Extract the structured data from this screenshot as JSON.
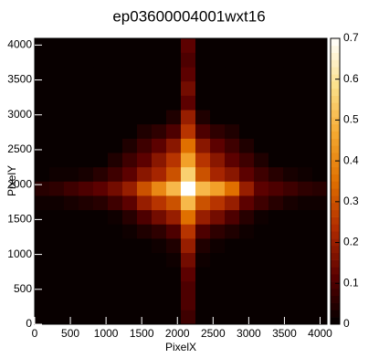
{
  "chart_data": {
    "type": "heatmap",
    "title": "ep03600004001wxt16",
    "x_label": "PixelX",
    "y_label": "PixelY",
    "xlim": [
      0,
      4096
    ],
    "ylim": [
      0,
      4096
    ],
    "xticks": [
      0,
      500,
      1000,
      1500,
      2000,
      2500,
      3000,
      3500,
      4000
    ],
    "yticks": [
      0,
      500,
      1000,
      1500,
      2000,
      2500,
      3000,
      3500,
      4000
    ],
    "zlim": [
      0,
      0.7
    ],
    "zticks": [
      0,
      0.1,
      0.2,
      0.3,
      0.4,
      0.5,
      0.6,
      0.7
    ],
    "colormap": [
      "#000000",
      "#5a0000",
      "#b02a00",
      "#e07000",
      "#f5a830",
      "#fbe08a",
      "#ffffff"
    ],
    "z": [
      [
        0.01,
        0.01,
        0.01,
        0.01,
        0.01,
        0.01,
        0.01,
        0.01,
        0.01,
        0.01,
        0.08,
        0.01,
        0.01,
        0.01,
        0.01,
        0.01,
        0.01,
        0.01,
        0.01,
        0.01
      ],
      [
        0.01,
        0.01,
        0.01,
        0.01,
        0.01,
        0.01,
        0.01,
        0.01,
        0.01,
        0.01,
        0.1,
        0.01,
        0.01,
        0.01,
        0.01,
        0.01,
        0.01,
        0.01,
        0.01,
        0.01
      ],
      [
        0.01,
        0.01,
        0.01,
        0.01,
        0.01,
        0.01,
        0.01,
        0.01,
        0.01,
        0.01,
        0.1,
        0.01,
        0.01,
        0.01,
        0.01,
        0.01,
        0.01,
        0.01,
        0.01,
        0.01
      ],
      [
        0.01,
        0.01,
        0.01,
        0.01,
        0.01,
        0.01,
        0.01,
        0.01,
        0.01,
        0.01,
        0.12,
        0.01,
        0.01,
        0.01,
        0.01,
        0.01,
        0.01,
        0.01,
        0.01,
        0.01
      ],
      [
        0.01,
        0.01,
        0.01,
        0.01,
        0.01,
        0.01,
        0.01,
        0.01,
        0.01,
        0.02,
        0.15,
        0.02,
        0.01,
        0.01,
        0.01,
        0.01,
        0.01,
        0.01,
        0.01,
        0.01
      ],
      [
        0.01,
        0.01,
        0.01,
        0.01,
        0.01,
        0.01,
        0.01,
        0.01,
        0.02,
        0.04,
        0.2,
        0.04,
        0.02,
        0.01,
        0.01,
        0.01,
        0.01,
        0.01,
        0.01,
        0.01
      ],
      [
        0.01,
        0.01,
        0.01,
        0.01,
        0.01,
        0.01,
        0.02,
        0.04,
        0.06,
        0.1,
        0.25,
        0.1,
        0.06,
        0.04,
        0.02,
        0.01,
        0.01,
        0.01,
        0.01,
        0.01
      ],
      [
        0.01,
        0.01,
        0.01,
        0.01,
        0.01,
        0.02,
        0.05,
        0.1,
        0.15,
        0.2,
        0.35,
        0.2,
        0.15,
        0.1,
        0.05,
        0.02,
        0.01,
        0.01,
        0.01,
        0.01
      ],
      [
        0.02,
        0.02,
        0.03,
        0.04,
        0.05,
        0.08,
        0.12,
        0.2,
        0.25,
        0.3,
        0.5,
        0.3,
        0.25,
        0.2,
        0.12,
        0.08,
        0.05,
        0.03,
        0.02,
        0.02
      ],
      [
        0.05,
        0.06,
        0.08,
        0.1,
        0.12,
        0.15,
        0.2,
        0.3,
        0.4,
        0.5,
        0.7,
        0.5,
        0.45,
        0.35,
        0.2,
        0.12,
        0.1,
        0.08,
        0.06,
        0.05
      ],
      [
        0.01,
        0.02,
        0.02,
        0.03,
        0.05,
        0.08,
        0.12,
        0.18,
        0.22,
        0.3,
        0.55,
        0.3,
        0.22,
        0.18,
        0.12,
        0.08,
        0.05,
        0.03,
        0.02,
        0.01
      ],
      [
        0.01,
        0.01,
        0.01,
        0.01,
        0.01,
        0.04,
        0.08,
        0.12,
        0.18,
        0.25,
        0.45,
        0.25,
        0.18,
        0.12,
        0.08,
        0.04,
        0.01,
        0.01,
        0.01,
        0.01
      ],
      [
        0.01,
        0.01,
        0.01,
        0.01,
        0.01,
        0.01,
        0.04,
        0.08,
        0.12,
        0.18,
        0.35,
        0.18,
        0.12,
        0.08,
        0.04,
        0.01,
        0.01,
        0.01,
        0.01,
        0.01
      ],
      [
        0.01,
        0.01,
        0.01,
        0.01,
        0.01,
        0.01,
        0.01,
        0.04,
        0.06,
        0.1,
        0.25,
        0.1,
        0.06,
        0.04,
        0.01,
        0.01,
        0.01,
        0.01,
        0.01,
        0.01
      ],
      [
        0.01,
        0.01,
        0.01,
        0.01,
        0.01,
        0.01,
        0.01,
        0.01,
        0.01,
        0.04,
        0.2,
        0.04,
        0.01,
        0.01,
        0.01,
        0.01,
        0.01,
        0.01,
        0.01,
        0.01
      ],
      [
        0.01,
        0.01,
        0.01,
        0.01,
        0.01,
        0.01,
        0.01,
        0.01,
        0.01,
        0.01,
        0.12,
        0.01,
        0.01,
        0.01,
        0.01,
        0.01,
        0.01,
        0.01,
        0.01,
        0.01
      ],
      [
        0.01,
        0.01,
        0.01,
        0.01,
        0.01,
        0.01,
        0.01,
        0.01,
        0.01,
        0.01,
        0.15,
        0.01,
        0.01,
        0.01,
        0.01,
        0.01,
        0.01,
        0.01,
        0.01,
        0.01
      ],
      [
        0.01,
        0.01,
        0.01,
        0.01,
        0.01,
        0.01,
        0.01,
        0.01,
        0.01,
        0.01,
        0.12,
        0.01,
        0.01,
        0.01,
        0.01,
        0.01,
        0.01,
        0.01,
        0.01,
        0.01
      ],
      [
        0.01,
        0.01,
        0.01,
        0.01,
        0.01,
        0.01,
        0.01,
        0.01,
        0.01,
        0.01,
        0.1,
        0.01,
        0.01,
        0.01,
        0.01,
        0.01,
        0.01,
        0.01,
        0.01,
        0.01
      ],
      [
        0.01,
        0.01,
        0.01,
        0.01,
        0.01,
        0.01,
        0.01,
        0.01,
        0.01,
        0.01,
        0.12,
        0.01,
        0.01,
        0.01,
        0.01,
        0.01,
        0.01,
        0.01,
        0.01,
        0.01
      ]
    ]
  }
}
